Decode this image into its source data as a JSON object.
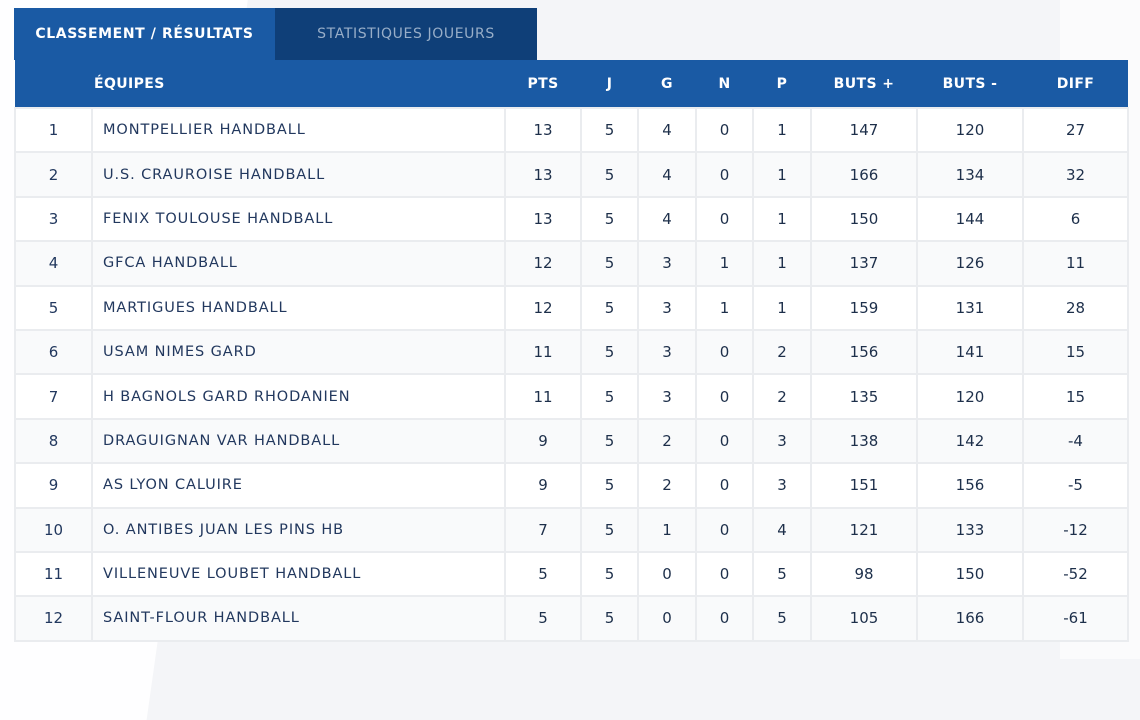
{
  "tabs": [
    {
      "label": "CLASSEMENT / RÉSULTATS",
      "active": true
    },
    {
      "label": "STATISTIQUES JOUEURS",
      "active": false
    }
  ],
  "colors": {
    "header_blue": "#1a5aa4",
    "dark_tab": "#0f3f78"
  },
  "table": {
    "headers": [
      "",
      "ÉQUIPES",
      "PTS",
      "J",
      "G",
      "N",
      "P",
      "BUTS +",
      "BUTS -",
      "DIFF"
    ],
    "rows": [
      [
        "1",
        "MONTPELLIER HANDBALL",
        "13",
        "5",
        "4",
        "0",
        "1",
        "147",
        "120",
        "27"
      ],
      [
        "2",
        "U.S. CRAUROISE HANDBALL",
        "13",
        "5",
        "4",
        "0",
        "1",
        "166",
        "134",
        "32"
      ],
      [
        "3",
        "FENIX TOULOUSE HANDBALL",
        "13",
        "5",
        "4",
        "0",
        "1",
        "150",
        "144",
        "6"
      ],
      [
        "4",
        "GFCA HANDBALL",
        "12",
        "5",
        "3",
        "1",
        "1",
        "137",
        "126",
        "11"
      ],
      [
        "5",
        "MARTIGUES HANDBALL",
        "12",
        "5",
        "3",
        "1",
        "1",
        "159",
        "131",
        "28"
      ],
      [
        "6",
        "USAM NIMES GARD",
        "11",
        "5",
        "3",
        "0",
        "2",
        "156",
        "141",
        "15"
      ],
      [
        "7",
        "H BAGNOLS GARD RHODANIEN",
        "11",
        "5",
        "3",
        "0",
        "2",
        "135",
        "120",
        "15"
      ],
      [
        "8",
        "DRAGUIGNAN VAR HANDBALL",
        "9",
        "5",
        "2",
        "0",
        "3",
        "138",
        "142",
        "-4"
      ],
      [
        "9",
        "AS LYON CALUIRE",
        "9",
        "5",
        "2",
        "0",
        "3",
        "151",
        "156",
        "-5"
      ],
      [
        "10",
        "O. ANTIBES JUAN LES PINS HB",
        "7",
        "5",
        "1",
        "0",
        "4",
        "121",
        "133",
        "-12"
      ],
      [
        "11",
        "VILLENEUVE LOUBET HANDBALL",
        "5",
        "5",
        "0",
        "0",
        "5",
        "98",
        "150",
        "-52"
      ],
      [
        "12",
        "SAINT-FLOUR HANDBALL",
        "5",
        "5",
        "0",
        "0",
        "5",
        "105",
        "166",
        "-61"
      ]
    ]
  }
}
